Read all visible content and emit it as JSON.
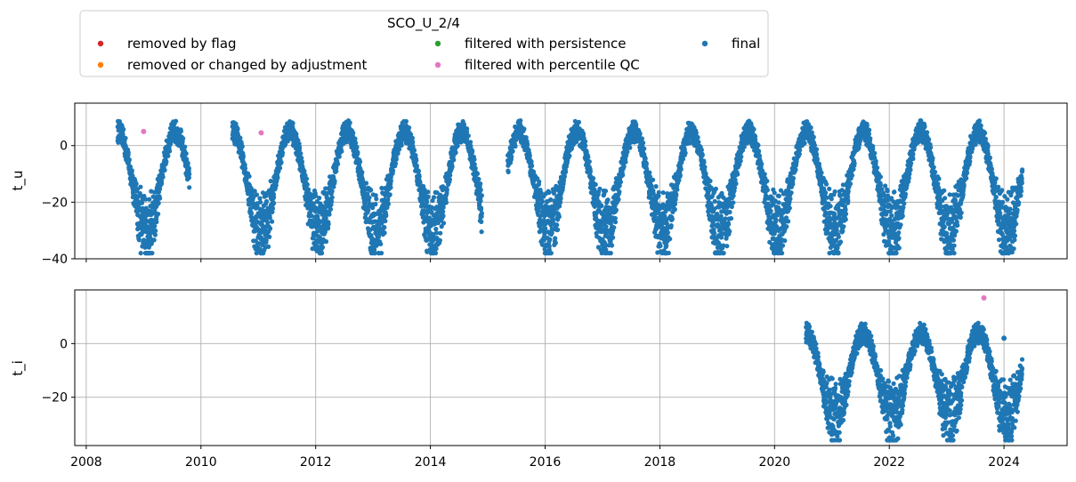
{
  "legend": {
    "title": "SCO_U_2/4",
    "entries": [
      {
        "label": "removed by flag",
        "color": "#d62728"
      },
      {
        "label": "removed or changed by adjustment",
        "color": "#ff7f0e"
      },
      {
        "label": "filtered with persistence",
        "color": "#2ca02c"
      },
      {
        "label": "filtered with percentile QC",
        "color": "#e377c2"
      },
      {
        "label": "final",
        "color": "#1f77b4"
      }
    ]
  },
  "chart_data": [
    {
      "type": "scatter",
      "ylabel": "t_u",
      "xlim": [
        2007.8,
        2025.1
      ],
      "ylim": [
        -40,
        15
      ],
      "yticks": [
        0,
        -20,
        -40
      ],
      "ytick_labels": [
        "0",
        "−20",
        "−40"
      ],
      "xticks": [
        2008,
        2010,
        2012,
        2014,
        2016,
        2018,
        2020,
        2022,
        2024
      ],
      "grid": true,
      "final_color": "#1f77b4",
      "coverage": [
        [
          2008.55,
          2009.8
        ],
        [
          2010.55,
          2014.9
        ],
        [
          2015.35,
          2024.32
        ]
      ],
      "annual_cycle": {
        "summer_max": 5,
        "winter_min": -30
      },
      "outliers": [
        {
          "series": "filtered with percentile QC",
          "x": 2009.0,
          "y": 5
        },
        {
          "series": "filtered with percentile QC",
          "x": 2011.05,
          "y": 4.5
        }
      ]
    },
    {
      "type": "scatter",
      "ylabel": "t_i",
      "xlim": [
        2007.8,
        2025.1
      ],
      "ylim": [
        -38,
        20
      ],
      "yticks": [
        0,
        -20
      ],
      "ytick_labels": [
        "0",
        "−20"
      ],
      "xticks": [
        2008,
        2010,
        2012,
        2014,
        2016,
        2018,
        2020,
        2022,
        2024
      ],
      "xtick_labels": [
        "2008",
        "2010",
        "2012",
        "2014",
        "2016",
        "2018",
        "2020",
        "2022",
        "2024"
      ],
      "grid": true,
      "final_color": "#1f77b4",
      "coverage": [
        [
          2020.55,
          2024.32
        ]
      ],
      "annual_cycle": {
        "summer_max": 4,
        "winter_min": -27
      },
      "outliers": [
        {
          "series": "filtered with percentile QC",
          "x": 2023.65,
          "y": 17
        },
        {
          "series": "final",
          "x": 2024.0,
          "y": 2
        }
      ]
    }
  ]
}
